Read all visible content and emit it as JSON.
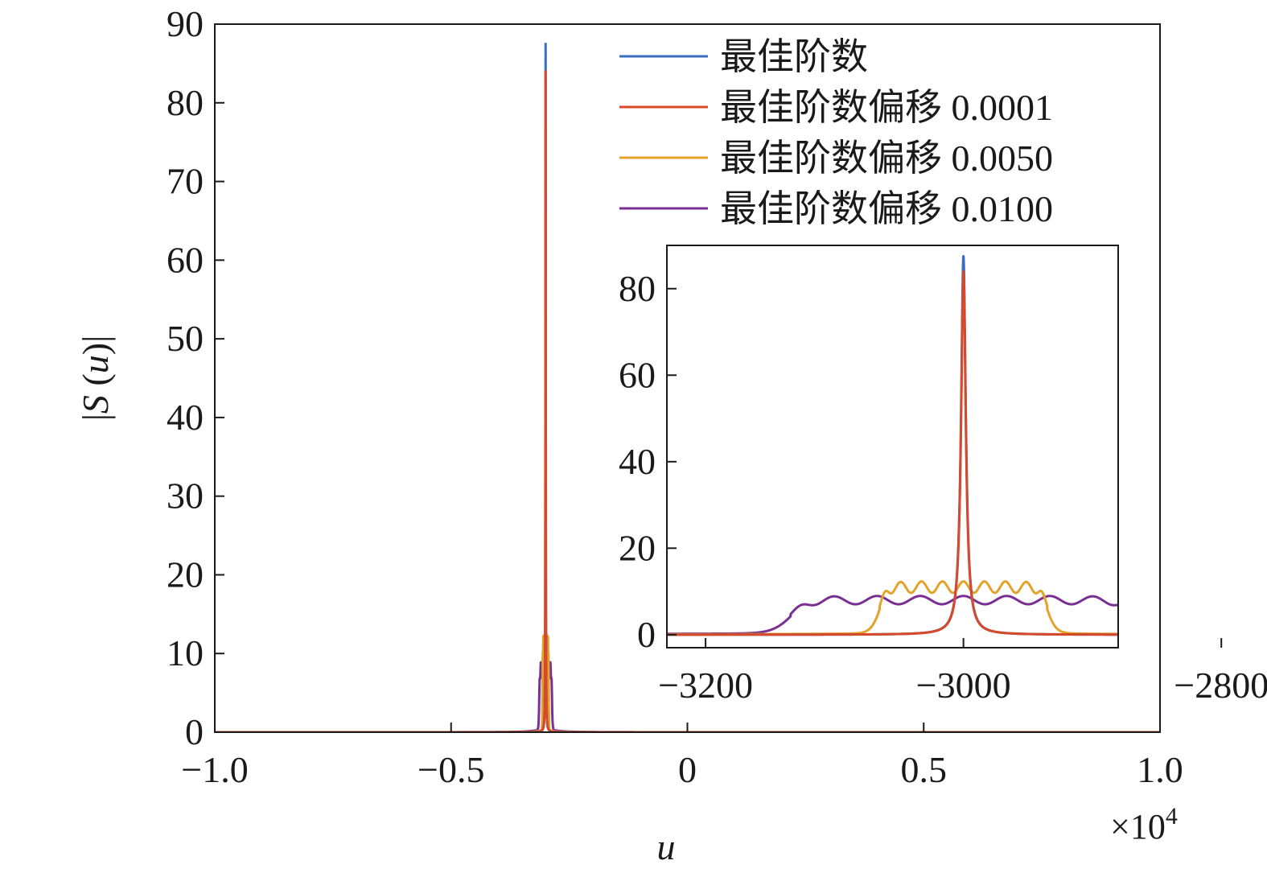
{
  "chart_data": [
    {
      "type": "line",
      "xlabel": "u",
      "ylabel_prefix": "|",
      "ylabel_S": "S",
      "ylabel_open": " (",
      "ylabel_u": "u",
      "ylabel_close": ")|",
      "x_multiplier_base": "×10",
      "x_multiplier_exp": "4",
      "xlim": [
        -1.0,
        1.0
      ],
      "ylim": [
        0,
        90
      ],
      "xticks": [
        -1.0,
        -0.5,
        0,
        0.5,
        1.0
      ],
      "xtick_labels": [
        "−1.0",
        "−0.5",
        "0",
        "0.5",
        "1.0"
      ],
      "yticks": [
        0,
        10,
        20,
        30,
        40,
        50,
        60,
        70,
        80,
        90
      ],
      "ytick_labels": [
        "0",
        "10",
        "20",
        "30",
        "40",
        "50",
        "60",
        "70",
        "80",
        "90"
      ],
      "legend_placement": "top-right",
      "series": [
        {
          "name": "最佳阶数",
          "color": "#3a6fc4",
          "center": -0.3,
          "peak": 87.5,
          "shape": "spike"
        },
        {
          "name": "最佳阶数偏移 0.0001",
          "color": "#d8492a",
          "center": -0.3,
          "peak": 84,
          "shape": "spike"
        },
        {
          "name": "最佳阶数偏移 0.0050",
          "color": "#e3a32a",
          "center": -0.3,
          "plateau": 11,
          "edge_peak": 13,
          "half_width": 0.0065,
          "shape": "plateau"
        },
        {
          "name": "最佳阶数偏移 0.0100",
          "color": "#7a2f93",
          "center": -0.3,
          "plateau": 8,
          "edge_peak": 9,
          "half_width": 0.0134,
          "shape": "plateau"
        }
      ]
    },
    {
      "type": "line",
      "xlim": [
        -3230,
        -2880
      ],
      "ylim": [
        -3,
        90
      ],
      "xticks": [
        -3200,
        -3000,
        -2800
      ],
      "xtick_labels": [
        "−3200",
        "−3000",
        "−2800"
      ],
      "yticks": [
        0,
        20,
        40,
        60,
        80
      ],
      "ytick_labels": [
        "0",
        "20",
        "40",
        "60",
        "80"
      ],
      "series": [
        {
          "name": "最佳阶数",
          "color": "#3a6fc4",
          "center": -3000,
          "peak": 87.5,
          "shape": "spike"
        },
        {
          "name": "最佳阶数偏移 0.0001",
          "color": "#d8492a",
          "center": -3000,
          "peak": 84,
          "shape": "spike"
        },
        {
          "name": "最佳阶数偏移 0.0050",
          "color": "#e3a32a",
          "center": -3000,
          "plateau": 11,
          "edge_peak": 13,
          "half_width": 65,
          "shape": "plateau"
        },
        {
          "name": "最佳阶数偏移 0.0100",
          "color": "#7a2f93",
          "center": -3000,
          "plateau": 8,
          "edge_peak": 9,
          "half_width": 134,
          "shape": "plateau"
        }
      ]
    }
  ]
}
